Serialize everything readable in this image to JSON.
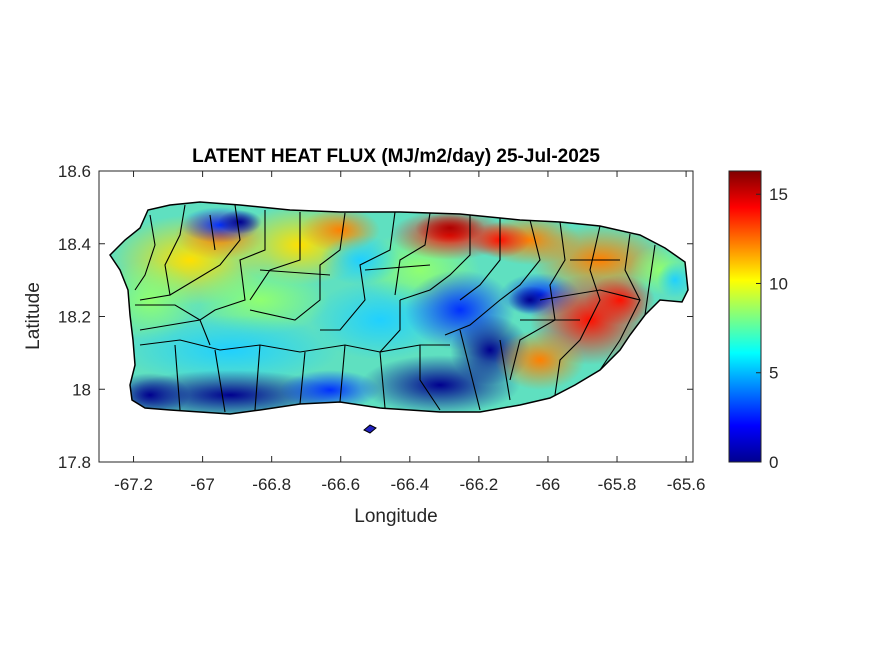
{
  "figure": {
    "title": "LATENT HEAT FLUX (MJ/m2/day) 25-Jul-2025",
    "xlabel": "Longitude",
    "ylabel": "Latitude"
  },
  "axes": {
    "x_ticks": [
      "-67.2",
      "-67",
      "-66.8",
      "-66.6",
      "-66.4",
      "-66.2",
      "-66",
      "-65.8",
      "-65.6"
    ],
    "y_ticks": [
      "18.6",
      "18.4",
      "18.2",
      "18",
      "17.8"
    ],
    "xlim": [
      -67.3,
      -65.58
    ],
    "ylim": [
      17.8,
      18.6
    ]
  },
  "colorbar": {
    "ticks": [
      "15",
      "10",
      "5",
      "0"
    ],
    "range": [
      0,
      16.3
    ],
    "colormap": "jet"
  },
  "colors": {
    "axis": "#262626",
    "boundary": "#000000"
  }
}
